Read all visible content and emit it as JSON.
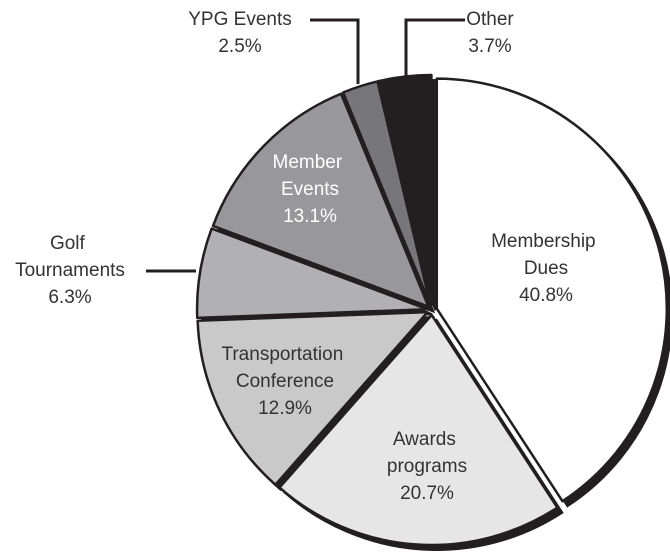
{
  "chart_data": {
    "type": "pie",
    "categories": [
      "Membership Dues",
      "Awards programs",
      "Transportation Conference",
      "Golf Tournaments",
      "Member Events",
      "YPG Events",
      "Other"
    ],
    "values": [
      40.8,
      20.7,
      12.9,
      6.3,
      13.1,
      2.5,
      3.7
    ],
    "value_labels": [
      "40.8%",
      "20.7%",
      "12.9%",
      "6.3%",
      "13.1%",
      "2.5%",
      "3.7%"
    ],
    "colors": [
      "#ffffff",
      "#e6e6e7",
      "#c9c9ca",
      "#b1b1b3",
      "#98989a",
      "#77777a",
      "#231f20"
    ]
  }
}
